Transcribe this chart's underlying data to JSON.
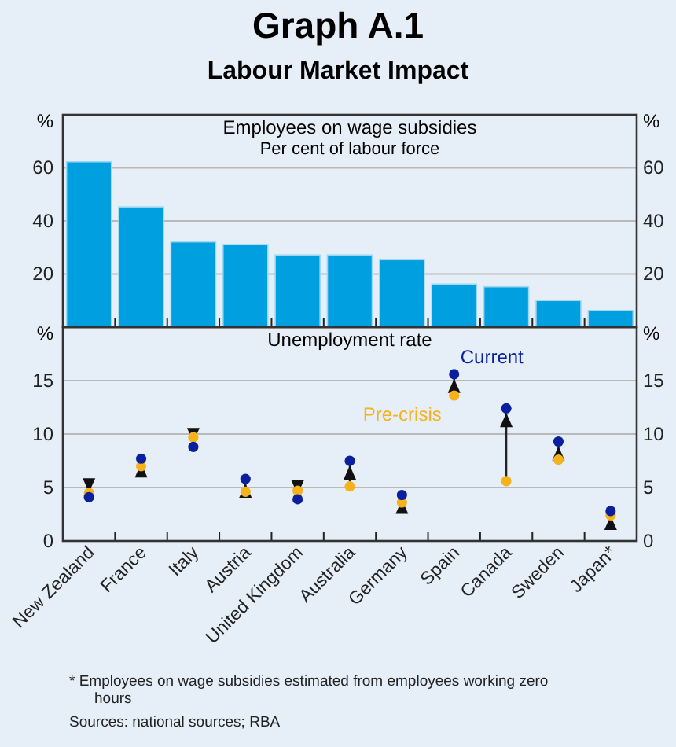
{
  "chart_data": [
    {
      "type": "other",
      "title": "Graph A.1",
      "subtitle": "Labour Market Impact"
    },
    {
      "type": "bar",
      "title": "Employees on wage subsidies",
      "subtitle": "Per cent of labour force",
      "ylabel": "%",
      "y2label": "%",
      "categories": [
        null,
        null,
        null,
        null,
        null,
        null,
        null,
        null,
        null,
        null,
        null
      ],
      "values": [
        62.3,
        45.3,
        32.1,
        31.1,
        27.2,
        27.2,
        25.4,
        16.2,
        15.2,
        10.0,
        6.3
      ],
      "color": "#009fe0",
      "ylim": [
        0,
        80
      ],
      "yticks": [
        20,
        40,
        60
      ],
      "y2lim": [
        0,
        80
      ],
      "y2ticks": [
        20,
        40,
        60
      ],
      "grid": "y",
      "tick_labels": "y"
    },
    {
      "type": "scatter",
      "title": "Unemployment rate",
      "ylabel": "%",
      "y2label": "%",
      "categories": [
        "New Zealand",
        "France",
        "Italy",
        "Austria",
        "United Kingdom",
        "Australia",
        "Germany",
        "Spain",
        "Canada",
        "Sweden",
        "Japan*"
      ],
      "series": [
        {
          "name": "Current",
          "color": "#0a1f9e",
          "values": [
            4.1,
            7.7,
            8.8,
            5.8,
            3.9,
            7.5,
            4.3,
            15.6,
            12.4,
            9.3,
            2.8
          ]
        },
        {
          "name": "Pre-crisis",
          "color": "#f6b21a",
          "values": [
            4.5,
            7.0,
            9.7,
            4.6,
            4.7,
            5.1,
            3.6,
            13.6,
            5.6,
            7.6,
            2.4
          ]
        }
      ],
      "ylim": [
        0,
        20
      ],
      "yticks": [
        0,
        5,
        10,
        15
      ],
      "y2lim": [
        0,
        20
      ],
      "y2ticks": [
        0,
        5,
        10,
        15
      ],
      "grid": "y",
      "marker": "circle",
      "annotations": [
        "* Employees on wage subsidies estimated from employees working zero hours",
        "Sources: national sources; RBA"
      ]
    }
  ]
}
